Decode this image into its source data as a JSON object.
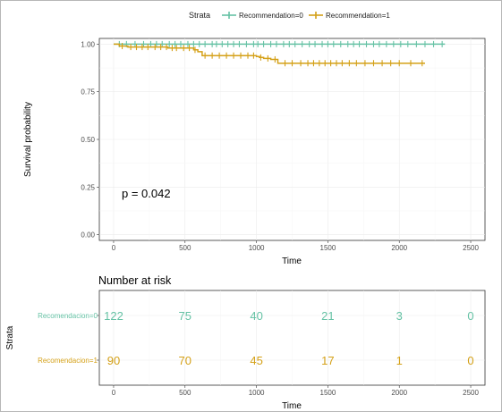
{
  "chart_data": [
    {
      "type": "line",
      "subtype": "kaplan-meier",
      "xlabel": "Time",
      "ylabel": "Survival probability",
      "xlim": [
        -100,
        2600
      ],
      "ylim": [
        -0.03,
        1.03
      ],
      "x_ticks": [
        0,
        500,
        1000,
        1500,
        2000,
        2500
      ],
      "y_ticks": [
        0.0,
        0.25,
        0.5,
        0.75,
        1.0
      ],
      "y_tick_labels": [
        "0.00",
        "0.25",
        "0.50",
        "0.75",
        "1.00"
      ],
      "grid": true,
      "legend_position": "top",
      "legend_title": "Strata",
      "annotation": "p = 0.042",
      "series": [
        {
          "name": "Recommendation=0",
          "color": "#66c2a5",
          "steps": [
            [
              0,
              1.0
            ],
            [
              2320,
              1.0
            ]
          ],
          "censor_x": [
            40,
            90,
            150,
            210,
            260,
            300,
            340,
            390,
            430,
            470,
            520,
            560,
            600,
            640,
            690,
            720,
            760,
            800,
            840,
            880,
            930,
            980,
            1010,
            1050,
            1100,
            1140,
            1190,
            1230,
            1270,
            1320,
            1370,
            1410,
            1460,
            1500,
            1540,
            1590,
            1640,
            1680,
            1720,
            1770,
            1820,
            1860,
            1910,
            1960,
            2010,
            2060,
            2120,
            2180,
            2240,
            2300
          ]
        },
        {
          "name": "Recommendation=1",
          "color": "#d4a017",
          "steps": [
            [
              0,
              1.0
            ],
            [
              40,
              0.99
            ],
            [
              100,
              0.985
            ],
            [
              380,
              0.98
            ],
            [
              560,
              0.97
            ],
            [
              590,
              0.96
            ],
            [
              620,
              0.94
            ],
            [
              1000,
              0.935
            ],
            [
              1020,
              0.93
            ],
            [
              1050,
              0.925
            ],
            [
              1100,
              0.92
            ],
            [
              1150,
              0.9
            ],
            [
              2180,
              0.9
            ]
          ],
          "censor_x": [
            60,
            120,
            160,
            200,
            240,
            290,
            330,
            370,
            410,
            440,
            490,
            530,
            570,
            640,
            690,
            740,
            790,
            840,
            890,
            940,
            980,
            1030,
            1080,
            1130,
            1200,
            1250,
            1310,
            1360,
            1400,
            1440,
            1480,
            1520,
            1560,
            1600,
            1650,
            1700,
            1760,
            1820,
            1880,
            1940,
            2000,
            2080,
            2160
          ]
        }
      ]
    },
    {
      "type": "table",
      "title": "Number at risk",
      "xlabel": "Time",
      "ylabel": "Strata",
      "x_ticks": [
        0,
        500,
        1000,
        1500,
        2000,
        2500
      ],
      "rows": [
        {
          "name": "Recomendacion=0",
          "color": "#66c2a5",
          "values": [
            122,
            75,
            40,
            21,
            3,
            0
          ]
        },
        {
          "name": "Recomendacion=1",
          "color": "#d4a017",
          "values": [
            90,
            70,
            45,
            17,
            1,
            0
          ]
        }
      ]
    }
  ]
}
